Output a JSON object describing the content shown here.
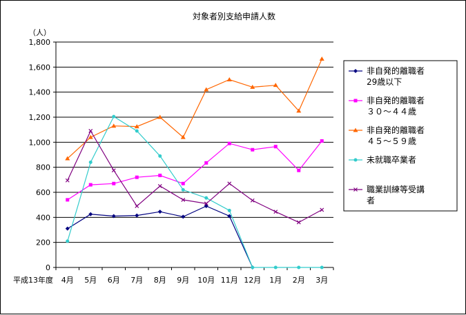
{
  "chart_data": {
    "type": "line",
    "title": "対象者別支給申請人数",
    "ylabel": "（人）",
    "x_prefix": "平成13年度",
    "categories": [
      "4月",
      "5月",
      "6月",
      "7月",
      "8月",
      "9月",
      "10月",
      "11月",
      "12月",
      "1月",
      "2月",
      "3月"
    ],
    "ylim": [
      0,
      1800
    ],
    "ytick_labels": [
      "0",
      "200",
      "400",
      "600",
      "800",
      "1,000",
      "1,200",
      "1,400",
      "1,600",
      "1,800"
    ],
    "grid": true,
    "legend_position": "right",
    "series": [
      {
        "name": "非自発的離職者 29歳以下",
        "legend_lines": [
          "非自発的離職者",
          "29歳以下"
        ],
        "color": "#000080",
        "marker": "diamond",
        "values": [
          310,
          425,
          410,
          415,
          445,
          405,
          490,
          410,
          0,
          null,
          null,
          null
        ]
      },
      {
        "name": "非自発的離職者 ３０～４４歳",
        "legend_lines": [
          "非自発的離職者",
          "３０～４４歳"
        ],
        "color": "#ff00ff",
        "marker": "square",
        "values": [
          540,
          660,
          670,
          720,
          735,
          670,
          835,
          990,
          940,
          965,
          775,
          1010
        ]
      },
      {
        "name": "非自発的離職者 ４５～５９歳",
        "legend_lines": [
          "非自発的離職者",
          "４５～５９歳"
        ],
        "color": "#ff6600",
        "marker": "triangle",
        "values": [
          870,
          1040,
          1130,
          1125,
          1200,
          1040,
          1420,
          1500,
          1440,
          1455,
          1250,
          1665
        ]
      },
      {
        "name": "未就職卒業者",
        "legend_lines": [
          "未就職卒業者"
        ],
        "color": "#33cccc",
        "marker": "circle",
        "values": [
          210,
          840,
          1205,
          1090,
          890,
          620,
          555,
          455,
          0,
          0,
          0,
          0
        ]
      },
      {
        "name": "職業訓練等受講者",
        "legend_lines": [
          "職業訓練等受講",
          "者"
        ],
        "color": "#800080",
        "marker": "cross",
        "values": [
          695,
          1090,
          775,
          490,
          650,
          540,
          510,
          670,
          535,
          445,
          360,
          460
        ]
      }
    ]
  }
}
